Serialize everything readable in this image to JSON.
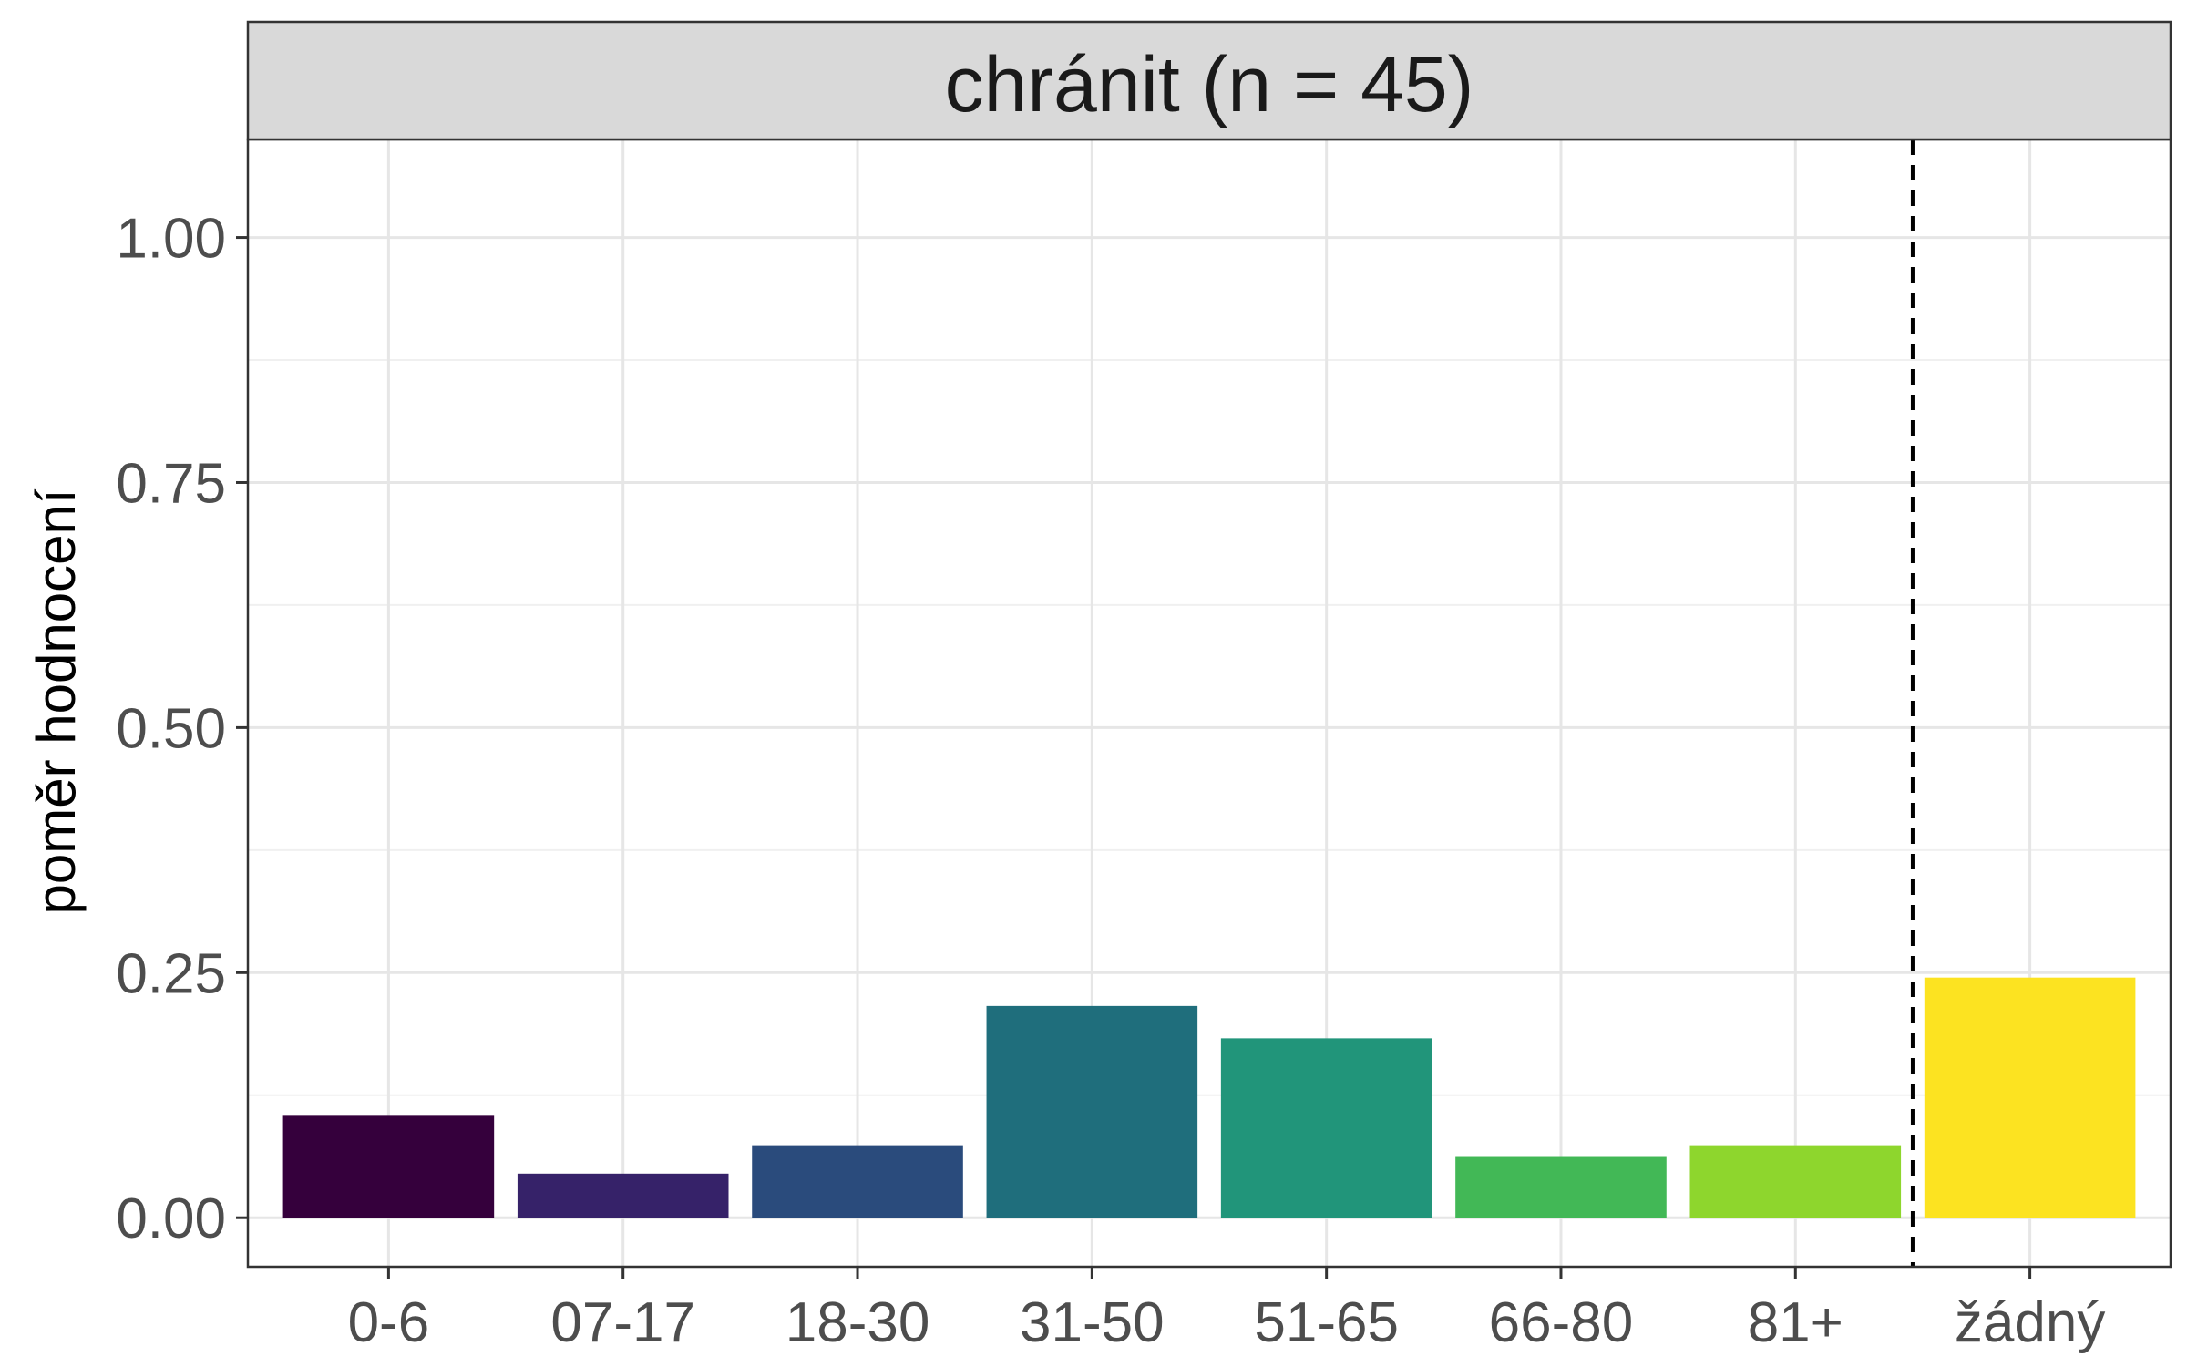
{
  "chart_data": {
    "type": "bar",
    "title": "chránit (n = 45)",
    "xlabel": "",
    "ylabel": "poměr hodnocení",
    "categories": [
      "0-6",
      "07-17",
      "18-30",
      "31-50",
      "51-65",
      "66-80",
      "81+",
      "žádný"
    ],
    "values": [
      0.104,
      0.045,
      0.074,
      0.216,
      0.183,
      0.062,
      0.074,
      0.245
    ],
    "colors": [
      "#35003C",
      "#362269",
      "#2A4B7C",
      "#1F6E7C",
      "#21957A",
      "#42B856",
      "#8ED62D",
      "#FCE321"
    ],
    "ylim": [
      -0.05,
      1.1
    ],
    "yticks": [
      0.0,
      0.25,
      0.5,
      0.75,
      1.0
    ],
    "ytick_labels": [
      "0.00",
      "0.25",
      "0.50",
      "0.75",
      "1.00"
    ],
    "separator_after_category": "81+",
    "separator_style": "dashed",
    "grid": true,
    "legend": "none"
  }
}
